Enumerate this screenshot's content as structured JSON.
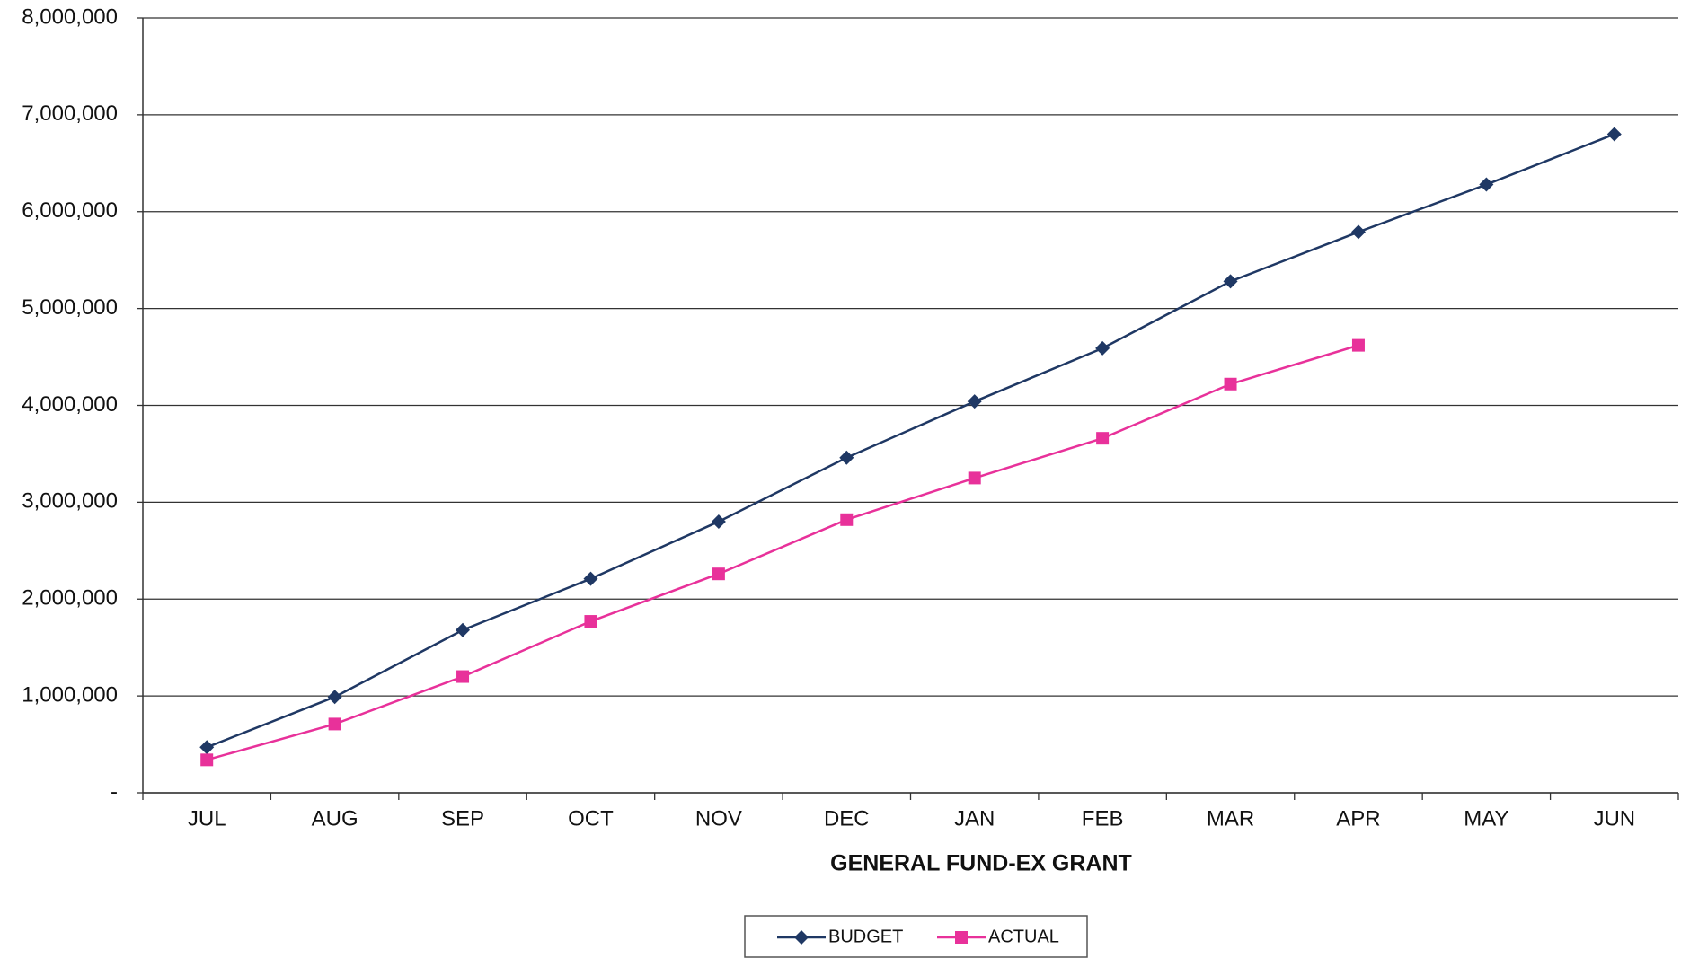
{
  "chart_data": {
    "type": "line",
    "x_label": "GENERAL FUND-EX GRANT",
    "categories": [
      "JUL",
      "AUG",
      "SEP",
      "OCT",
      "NOV",
      "DEC",
      "JAN",
      "FEB",
      "MAR",
      "APR",
      "MAY",
      "JUN"
    ],
    "series": [
      {
        "name": "BUDGET",
        "color": "#1f3864",
        "marker": "diamond",
        "values": [
          470000,
          990000,
          1680000,
          2210000,
          2800000,
          3460000,
          4040000,
          4590000,
          5280000,
          5790000,
          6280000,
          6800000
        ]
      },
      {
        "name": "ACTUAL",
        "color": "#e8319a",
        "marker": "square",
        "values": [
          340000,
          710000,
          1200000,
          1770000,
          2260000,
          2820000,
          3250000,
          3660000,
          4220000,
          4620000,
          null,
          null
        ]
      }
    ],
    "ylim": [
      0,
      8000000
    ],
    "yticks": [
      {
        "value": 0,
        "label": "-"
      },
      {
        "value": 1000000,
        "label": "1,000,000"
      },
      {
        "value": 2000000,
        "label": "2,000,000"
      },
      {
        "value": 3000000,
        "label": "3,000,000"
      },
      {
        "value": 4000000,
        "label": "4,000,000"
      },
      {
        "value": 5000000,
        "label": "5,000,000"
      },
      {
        "value": 6000000,
        "label": "6,000,000"
      },
      {
        "value": 7000000,
        "label": "7,000,000"
      },
      {
        "value": 8000000,
        "label": "8,000,000"
      }
    ],
    "grid": true,
    "legend": "bottom"
  }
}
